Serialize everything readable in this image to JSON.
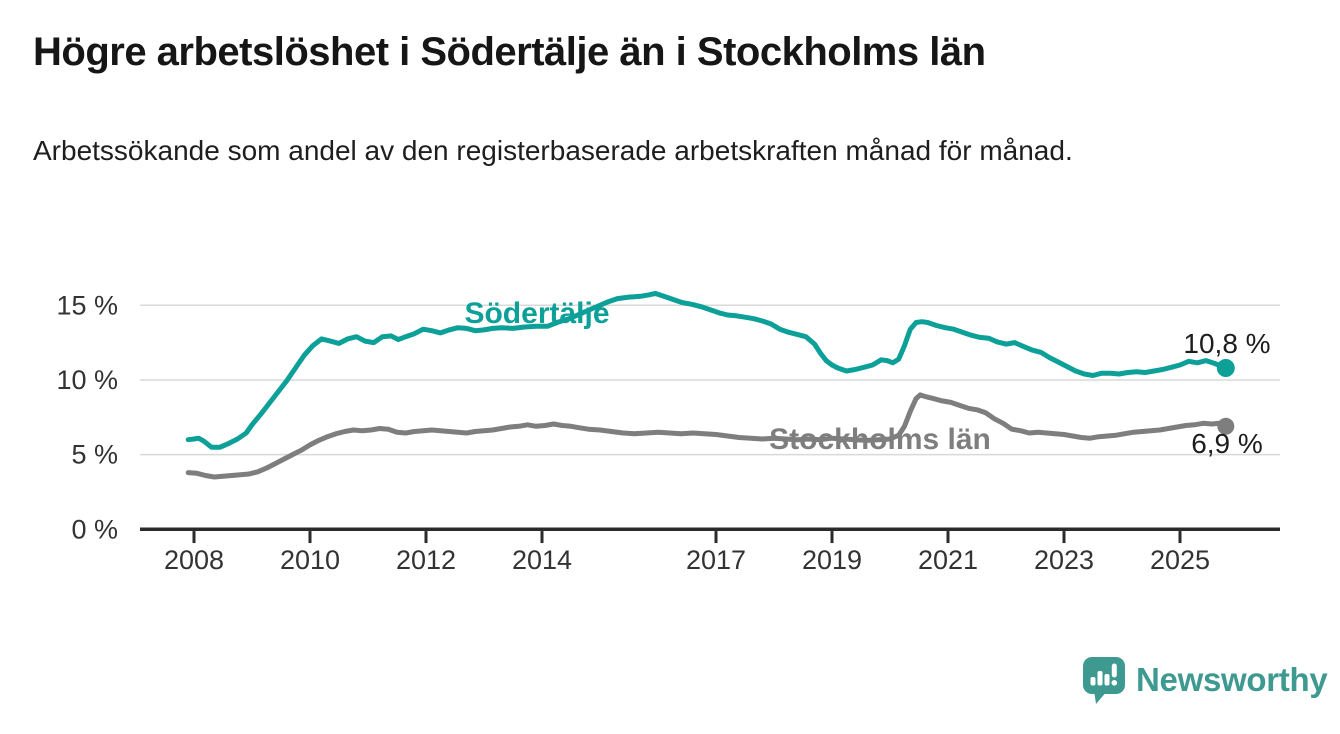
{
  "header": {
    "title": "Högre arbetslöshet i Södertälje än i Stockholms län",
    "subtitle": "Arbetssökande som andel av den registerbaserade arbetskraften månad för månad."
  },
  "footer": {
    "brand": "Newsworthy",
    "logo_icon": "speech-bubble-bar-chart-exclamation",
    "brand_color": "#3e9a91"
  },
  "chart_data": {
    "type": "line",
    "title": "Högre arbetslöshet i Södertälje än i Stockholms län",
    "subtitle": "Arbetssökande som andel av den registerbaserade arbetskraften månad för månad.",
    "grid": true,
    "legend_position": "inline-labels",
    "x_axis": {
      "label": "",
      "ticks": [
        2008,
        2010,
        2012,
        2014,
        2017,
        2019,
        2021,
        2023,
        2025
      ],
      "range": [
        2007.9,
        2026.4
      ]
    },
    "y_axis": {
      "label": "",
      "unit": "%",
      "range": [
        0,
        16.2
      ],
      "ticks": [
        {
          "value": 0,
          "label": "0 %"
        },
        {
          "value": 5,
          "label": "5 %"
        },
        {
          "value": 10,
          "label": "10 %"
        },
        {
          "value": 15,
          "label": "15 %"
        }
      ]
    },
    "style": {
      "grid_color": "#d9d9d9",
      "axis_color": "#2b2b2b",
      "axis_text_color": "#333333",
      "value_label_color": "#1d1d1d"
    },
    "series": [
      {
        "name": "Södertälje",
        "color": "#0da098",
        "end_label": "10,8 %",
        "end_value": 10.8,
        "points": [
          [
            2007.9,
            6.0
          ],
          [
            2008.0,
            6.05
          ],
          [
            2008.08,
            6.1
          ],
          [
            2008.17,
            5.9
          ],
          [
            2008.3,
            5.5
          ],
          [
            2008.45,
            5.5
          ],
          [
            2008.6,
            5.75
          ],
          [
            2008.75,
            6.05
          ],
          [
            2008.9,
            6.45
          ],
          [
            2009.0,
            7.0
          ],
          [
            2009.15,
            7.7
          ],
          [
            2009.3,
            8.45
          ],
          [
            2009.45,
            9.2
          ],
          [
            2009.6,
            9.95
          ],
          [
            2009.75,
            10.8
          ],
          [
            2009.9,
            11.65
          ],
          [
            2010.05,
            12.3
          ],
          [
            2010.2,
            12.75
          ],
          [
            2010.35,
            12.6
          ],
          [
            2010.5,
            12.45
          ],
          [
            2010.65,
            12.75
          ],
          [
            2010.8,
            12.9
          ],
          [
            2010.95,
            12.6
          ],
          [
            2011.1,
            12.5
          ],
          [
            2011.25,
            12.9
          ],
          [
            2011.4,
            12.95
          ],
          [
            2011.52,
            12.7
          ],
          [
            2011.65,
            12.9
          ],
          [
            2011.8,
            13.1
          ],
          [
            2011.95,
            13.4
          ],
          [
            2012.1,
            13.3
          ],
          [
            2012.25,
            13.15
          ],
          [
            2012.4,
            13.35
          ],
          [
            2012.55,
            13.5
          ],
          [
            2012.7,
            13.45
          ],
          [
            2012.85,
            13.3
          ],
          [
            2013.0,
            13.35
          ],
          [
            2013.15,
            13.45
          ],
          [
            2013.3,
            13.5
          ],
          [
            2013.5,
            13.45
          ],
          [
            2013.7,
            13.55
          ],
          [
            2013.9,
            13.6
          ],
          [
            2014.1,
            13.6
          ],
          [
            2014.3,
            13.9
          ],
          [
            2014.5,
            14.15
          ],
          [
            2014.7,
            14.5
          ],
          [
            2014.85,
            14.75
          ],
          [
            2015.0,
            15.0
          ],
          [
            2015.15,
            15.25
          ],
          [
            2015.3,
            15.45
          ],
          [
            2015.5,
            15.55
          ],
          [
            2015.7,
            15.6
          ],
          [
            2015.85,
            15.7
          ],
          [
            2015.95,
            15.8
          ],
          [
            2016.1,
            15.6
          ],
          [
            2016.25,
            15.4
          ],
          [
            2016.4,
            15.2
          ],
          [
            2016.6,
            15.05
          ],
          [
            2016.75,
            14.9
          ],
          [
            2016.9,
            14.7
          ],
          [
            2017.05,
            14.5
          ],
          [
            2017.2,
            14.35
          ],
          [
            2017.35,
            14.3
          ],
          [
            2017.5,
            14.2
          ],
          [
            2017.65,
            14.1
          ],
          [
            2017.8,
            13.95
          ],
          [
            2017.95,
            13.75
          ],
          [
            2018.1,
            13.4
          ],
          [
            2018.25,
            13.2
          ],
          [
            2018.4,
            13.05
          ],
          [
            2018.55,
            12.9
          ],
          [
            2018.7,
            12.4
          ],
          [
            2018.8,
            11.8
          ],
          [
            2018.9,
            11.3
          ],
          [
            2019.0,
            11.0
          ],
          [
            2019.1,
            10.8
          ],
          [
            2019.25,
            10.6
          ],
          [
            2019.4,
            10.7
          ],
          [
            2019.55,
            10.85
          ],
          [
            2019.7,
            11.0
          ],
          [
            2019.85,
            11.35
          ],
          [
            2019.95,
            11.3
          ],
          [
            2020.05,
            11.15
          ],
          [
            2020.15,
            11.4
          ],
          [
            2020.25,
            12.3
          ],
          [
            2020.35,
            13.4
          ],
          [
            2020.45,
            13.85
          ],
          [
            2020.55,
            13.9
          ],
          [
            2020.65,
            13.85
          ],
          [
            2020.8,
            13.65
          ],
          [
            2020.95,
            13.5
          ],
          [
            2021.1,
            13.4
          ],
          [
            2021.25,
            13.2
          ],
          [
            2021.4,
            13.0
          ],
          [
            2021.55,
            12.85
          ],
          [
            2021.7,
            12.8
          ],
          [
            2021.85,
            12.55
          ],
          [
            2022.0,
            12.4
          ],
          [
            2022.15,
            12.5
          ],
          [
            2022.3,
            12.25
          ],
          [
            2022.45,
            12.0
          ],
          [
            2022.6,
            11.85
          ],
          [
            2022.75,
            11.5
          ],
          [
            2022.9,
            11.2
          ],
          [
            2023.05,
            10.9
          ],
          [
            2023.2,
            10.6
          ],
          [
            2023.35,
            10.4
          ],
          [
            2023.5,
            10.3
          ],
          [
            2023.65,
            10.45
          ],
          [
            2023.8,
            10.45
          ],
          [
            2023.95,
            10.4
          ],
          [
            2024.1,
            10.5
          ],
          [
            2024.25,
            10.55
          ],
          [
            2024.4,
            10.5
          ],
          [
            2024.55,
            10.6
          ],
          [
            2024.7,
            10.7
          ],
          [
            2024.85,
            10.85
          ],
          [
            2025.0,
            11.0
          ],
          [
            2025.15,
            11.25
          ],
          [
            2025.3,
            11.15
          ],
          [
            2025.45,
            11.3
          ],
          [
            2025.6,
            11.1
          ],
          [
            2025.7,
            10.95
          ],
          [
            2025.79,
            10.8
          ]
        ]
      },
      {
        "name": "Stockholms län",
        "color": "#7e7e7e",
        "end_label": "6,9 %",
        "end_value": 6.9,
        "points": [
          [
            2007.9,
            3.8
          ],
          [
            2008.05,
            3.75
          ],
          [
            2008.2,
            3.6
          ],
          [
            2008.35,
            3.5
          ],
          [
            2008.5,
            3.55
          ],
          [
            2008.65,
            3.6
          ],
          [
            2008.8,
            3.65
          ],
          [
            2008.95,
            3.7
          ],
          [
            2009.1,
            3.85
          ],
          [
            2009.25,
            4.1
          ],
          [
            2009.4,
            4.4
          ],
          [
            2009.55,
            4.7
          ],
          [
            2009.7,
            5.0
          ],
          [
            2009.85,
            5.3
          ],
          [
            2010.0,
            5.65
          ],
          [
            2010.15,
            5.95
          ],
          [
            2010.3,
            6.2
          ],
          [
            2010.45,
            6.4
          ],
          [
            2010.6,
            6.55
          ],
          [
            2010.75,
            6.65
          ],
          [
            2010.9,
            6.6
          ],
          [
            2011.05,
            6.65
          ],
          [
            2011.2,
            6.75
          ],
          [
            2011.35,
            6.7
          ],
          [
            2011.5,
            6.5
          ],
          [
            2011.65,
            6.45
          ],
          [
            2011.8,
            6.55
          ],
          [
            2011.95,
            6.6
          ],
          [
            2012.1,
            6.65
          ],
          [
            2012.25,
            6.6
          ],
          [
            2012.4,
            6.55
          ],
          [
            2012.55,
            6.5
          ],
          [
            2012.7,
            6.45
          ],
          [
            2012.85,
            6.55
          ],
          [
            2013.0,
            6.6
          ],
          [
            2013.15,
            6.65
          ],
          [
            2013.3,
            6.75
          ],
          [
            2013.45,
            6.85
          ],
          [
            2013.6,
            6.9
          ],
          [
            2013.75,
            7.0
          ],
          [
            2013.9,
            6.9
          ],
          [
            2014.05,
            6.95
          ],
          [
            2014.2,
            7.05
          ],
          [
            2014.35,
            6.95
          ],
          [
            2014.5,
            6.9
          ],
          [
            2014.65,
            6.8
          ],
          [
            2014.8,
            6.7
          ],
          [
            2015.0,
            6.65
          ],
          [
            2015.2,
            6.55
          ],
          [
            2015.4,
            6.45
          ],
          [
            2015.6,
            6.4
          ],
          [
            2015.8,
            6.45
          ],
          [
            2016.0,
            6.5
          ],
          [
            2016.2,
            6.45
          ],
          [
            2016.4,
            6.4
          ],
          [
            2016.6,
            6.45
          ],
          [
            2016.8,
            6.4
          ],
          [
            2017.0,
            6.35
          ],
          [
            2017.2,
            6.25
          ],
          [
            2017.4,
            6.15
          ],
          [
            2017.6,
            6.1
          ],
          [
            2017.8,
            6.05
          ],
          [
            2018.0,
            6.1
          ],
          [
            2018.2,
            6.05
          ],
          [
            2018.4,
            6.0
          ],
          [
            2018.6,
            6.05
          ],
          [
            2018.8,
            6.0
          ],
          [
            2019.0,
            6.1
          ],
          [
            2019.2,
            6.05
          ],
          [
            2019.4,
            6.0
          ],
          [
            2019.6,
            5.95
          ],
          [
            2019.8,
            6.0
          ],
          [
            2020.0,
            6.05
          ],
          [
            2020.15,
            6.3
          ],
          [
            2020.25,
            6.9
          ],
          [
            2020.35,
            7.9
          ],
          [
            2020.45,
            8.75
          ],
          [
            2020.52,
            9.0
          ],
          [
            2020.6,
            8.9
          ],
          [
            2020.75,
            8.75
          ],
          [
            2020.9,
            8.6
          ],
          [
            2021.05,
            8.5
          ],
          [
            2021.2,
            8.3
          ],
          [
            2021.35,
            8.1
          ],
          [
            2021.5,
            8.0
          ],
          [
            2021.65,
            7.8
          ],
          [
            2021.8,
            7.4
          ],
          [
            2021.95,
            7.1
          ],
          [
            2022.1,
            6.7
          ],
          [
            2022.25,
            6.6
          ],
          [
            2022.4,
            6.45
          ],
          [
            2022.55,
            6.5
          ],
          [
            2022.7,
            6.45
          ],
          [
            2022.85,
            6.4
          ],
          [
            2023.0,
            6.35
          ],
          [
            2023.15,
            6.25
          ],
          [
            2023.3,
            6.15
          ],
          [
            2023.45,
            6.1
          ],
          [
            2023.6,
            6.2
          ],
          [
            2023.75,
            6.25
          ],
          [
            2023.9,
            6.3
          ],
          [
            2024.05,
            6.4
          ],
          [
            2024.2,
            6.5
          ],
          [
            2024.35,
            6.55
          ],
          [
            2024.5,
            6.6
          ],
          [
            2024.65,
            6.65
          ],
          [
            2024.8,
            6.75
          ],
          [
            2024.95,
            6.85
          ],
          [
            2025.1,
            6.95
          ],
          [
            2025.25,
            7.0
          ],
          [
            2025.4,
            7.1
          ],
          [
            2025.55,
            7.05
          ],
          [
            2025.67,
            7.1
          ],
          [
            2025.79,
            6.9
          ]
        ]
      }
    ]
  }
}
